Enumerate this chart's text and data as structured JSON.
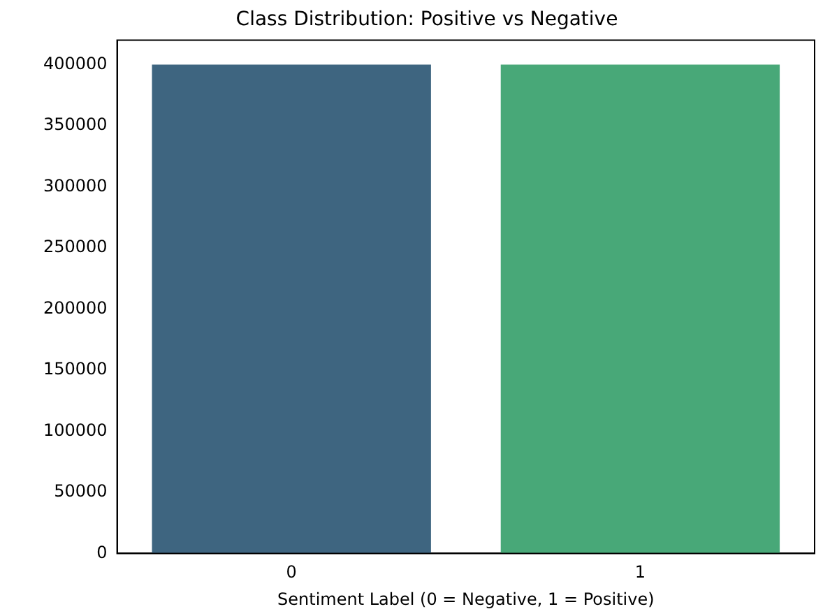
{
  "chart_data": {
    "type": "bar",
    "title": "Class Distribution: Positive vs Negative",
    "xlabel": "Sentiment Label (0 = Negative, 1 = Positive)",
    "categories": [
      "0",
      "1"
    ],
    "values": [
      400000,
      400000
    ],
    "colors": [
      "#3e6580",
      "#48a878"
    ],
    "ylim": [
      0,
      420000
    ],
    "yticks": [
      0,
      50000,
      100000,
      150000,
      200000,
      250000,
      300000,
      350000,
      400000
    ],
    "grid": false,
    "legend": false
  }
}
